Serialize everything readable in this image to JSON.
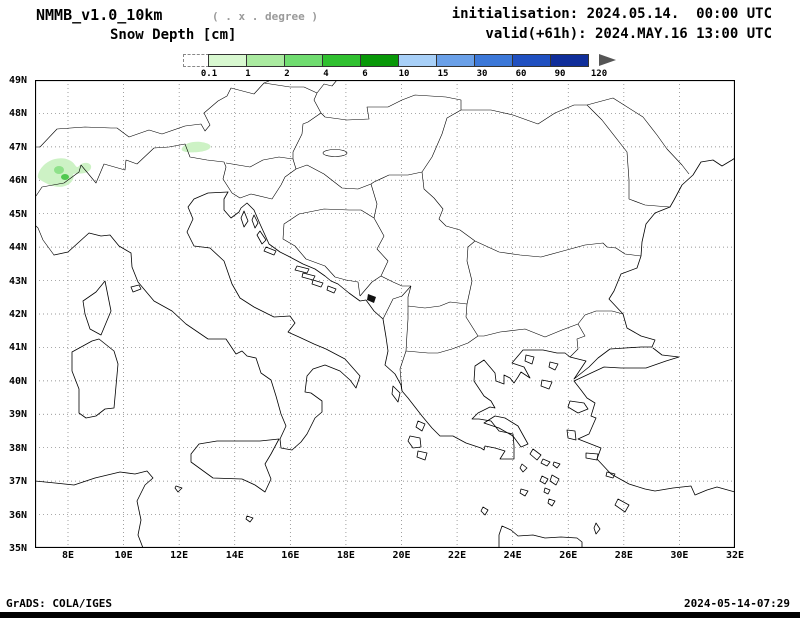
{
  "header": {
    "model_title": "NMMB_v1.0_10km",
    "resolution_note": "( . x . degree )",
    "field_title": "Snow Depth [cm]",
    "init_label": "initialisation: 2024.05.14.  00:00 UTC",
    "valid_label": "valid(+61h): 2024.MAY.16 13:00 UTC"
  },
  "colorbar": {
    "units": "cm",
    "labels": [
      "0.1",
      "1",
      "2",
      "4",
      "6",
      "10",
      "15",
      "30",
      "60",
      "90",
      "120"
    ],
    "colors": [
      "#ffffff",
      "#d8f8d0",
      "#aaeaa0",
      "#70dc70",
      "#30c030",
      "#089808",
      "#a8d0f8",
      "#6aa0e8",
      "#3c78d8",
      "#2050c0",
      "#102e9a"
    ],
    "overflow_color": "#555555"
  },
  "map": {
    "lat_labels": [
      "49N",
      "48N",
      "47N",
      "46N",
      "45N",
      "44N",
      "43N",
      "42N",
      "41N",
      "40N",
      "39N",
      "38N",
      "37N",
      "36N",
      "35N"
    ],
    "lon_labels": [
      "8E",
      "10E",
      "12E",
      "14E",
      "16E",
      "18E",
      "20E",
      "22E",
      "24E",
      "26E",
      "28E",
      "30E",
      "32E"
    ],
    "lat_range": [
      35,
      49
    ],
    "lon_label_range": [
      8,
      32
    ],
    "lat_interval_deg": 1,
    "lon_interval_deg": 2
  },
  "snow_patches": [
    {
      "region": "Western Alps (~7-9E, 45.9-46.7N)",
      "approx_value_cm": "0.1-4"
    },
    {
      "region": "Eastern Alps (~12-13E, ~47N)",
      "approx_value_cm": "0.1-1"
    }
  ],
  "footer": {
    "left": "GrADS: COLA/IGES",
    "right": "2024-05-14-07:29"
  }
}
